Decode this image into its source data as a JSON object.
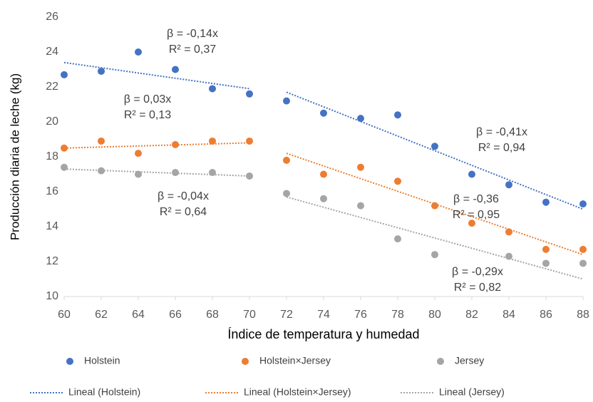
{
  "chart_data": {
    "type": "scatter",
    "x_label": "Índice de temperatura y humedad",
    "y_label": "Producción diaria de leche (kg)",
    "x": [
      60,
      62,
      64,
      66,
      68,
      70,
      72,
      74,
      76,
      78,
      80,
      82,
      84,
      86,
      88
    ],
    "xlim": [
      60,
      88
    ],
    "xticks": [
      60,
      62,
      64,
      66,
      68,
      70,
      72,
      74,
      76,
      78,
      80,
      82,
      84,
      86,
      88
    ],
    "ylim": [
      10,
      26
    ],
    "yticks": [
      10,
      12,
      14,
      16,
      18,
      20,
      22,
      24,
      26
    ],
    "series": [
      {
        "name": "Holstein",
        "color": "#4472c4",
        "values": [
          22.7,
          22.9,
          24.0,
          23.0,
          21.9,
          21.6,
          21.2,
          20.5,
          20.2,
          20.4,
          18.6,
          17.0,
          16.4,
          15.4,
          15.3
        ]
      },
      {
        "name": "Holstein×Jersey",
        "color": "#ed7d31",
        "values": [
          18.5,
          18.9,
          18.2,
          18.7,
          18.9,
          18.9,
          17.8,
          17.0,
          17.4,
          16.6,
          15.2,
          14.2,
          13.7,
          12.7,
          12.7
        ]
      },
      {
        "name": "Jersey",
        "color": "#a5a5a5",
        "values": [
          17.4,
          17.2,
          17.0,
          17.1,
          17.1,
          16.9,
          15.9,
          15.6,
          15.2,
          13.3,
          12.4,
          null,
          12.3,
          11.9,
          11.9
        ]
      }
    ],
    "trendlines": [
      {
        "name": "Lineal (Holstein)",
        "color": "#4472c4",
        "segments": [
          {
            "x": [
              60,
              70
            ],
            "y": [
              23.4,
              21.9
            ]
          },
          {
            "x": [
              72,
              88
            ],
            "y": [
              21.7,
              15.0
            ]
          }
        ]
      },
      {
        "name": "Lineal (Holstein×Jersey)",
        "color": "#ed7d31",
        "segments": [
          {
            "x": [
              60,
              70
            ],
            "y": [
              18.5,
              18.8
            ]
          },
          {
            "x": [
              72,
              88
            ],
            "y": [
              18.2,
              12.4
            ]
          }
        ]
      },
      {
        "name": "Lineal (Jersey)",
        "color": "#a5a5a5",
        "segments": [
          {
            "x": [
              60,
              70
            ],
            "y": [
              17.3,
              16.9
            ]
          },
          {
            "x": [
              72,
              88
            ],
            "y": [
              15.7,
              11.0
            ]
          }
        ]
      }
    ],
    "annotations": [
      [
        "β = -0,14x",
        "R² = 0,37"
      ],
      [
        "β = 0,03x",
        "R² = 0,13"
      ],
      [
        "β = -0,04x",
        "R² = 0,64"
      ],
      [
        "β  = -0,41x",
        "R² = 0,94"
      ],
      [
        "β  = -0,36",
        "R² = 0,95"
      ],
      [
        "β  = -0,29x",
        "R² = 0,82"
      ]
    ]
  }
}
